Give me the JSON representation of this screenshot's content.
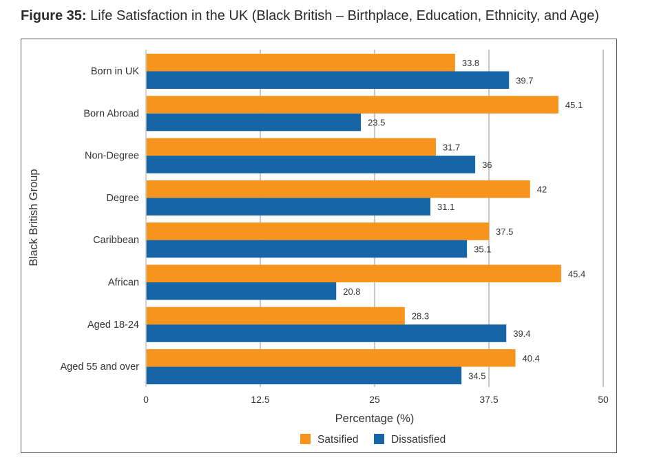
{
  "figure": {
    "number_label": "Figure 35:",
    "title": "Life Satisfaction in the UK (Black British – Birthplace, Education, Ethnicity, and Age)"
  },
  "chart_data": {
    "type": "bar",
    "orientation": "horizontal",
    "xlabel": "Percentage (%)",
    "ylabel": "Black British Group",
    "xlim": [
      0,
      50
    ],
    "xticks": [
      0,
      12.5,
      25,
      37.5,
      50
    ],
    "xtick_labels": [
      "0",
      "12.5",
      "25",
      "37.5",
      "50"
    ],
    "grid": "vertical",
    "categories": [
      "Born in UK",
      "Born Abroad",
      "Non-Degree",
      "Degree",
      "Caribbean",
      "African",
      "Aged 18-24",
      "Aged 55 and over"
    ],
    "series": [
      {
        "name": "Satsified",
        "color": "#F7941D",
        "values": [
          33.8,
          45.1,
          31.7,
          42,
          37.5,
          45.4,
          28.3,
          40.4
        ],
        "labels": [
          "33.8",
          "45.1",
          "31.7",
          "42",
          "37.5",
          "45.4",
          "28.3",
          "40.4"
        ]
      },
      {
        "name": "Dissatisfied",
        "color": "#1565A7",
        "values": [
          39.7,
          23.5,
          36,
          31.1,
          35.1,
          20.8,
          39.4,
          34.5
        ],
        "labels": [
          "39.7",
          "23.5",
          "36",
          "31.1",
          "35.1",
          "20.8",
          "39.4",
          "34.5"
        ]
      }
    ],
    "legend_position": "bottom-center"
  }
}
